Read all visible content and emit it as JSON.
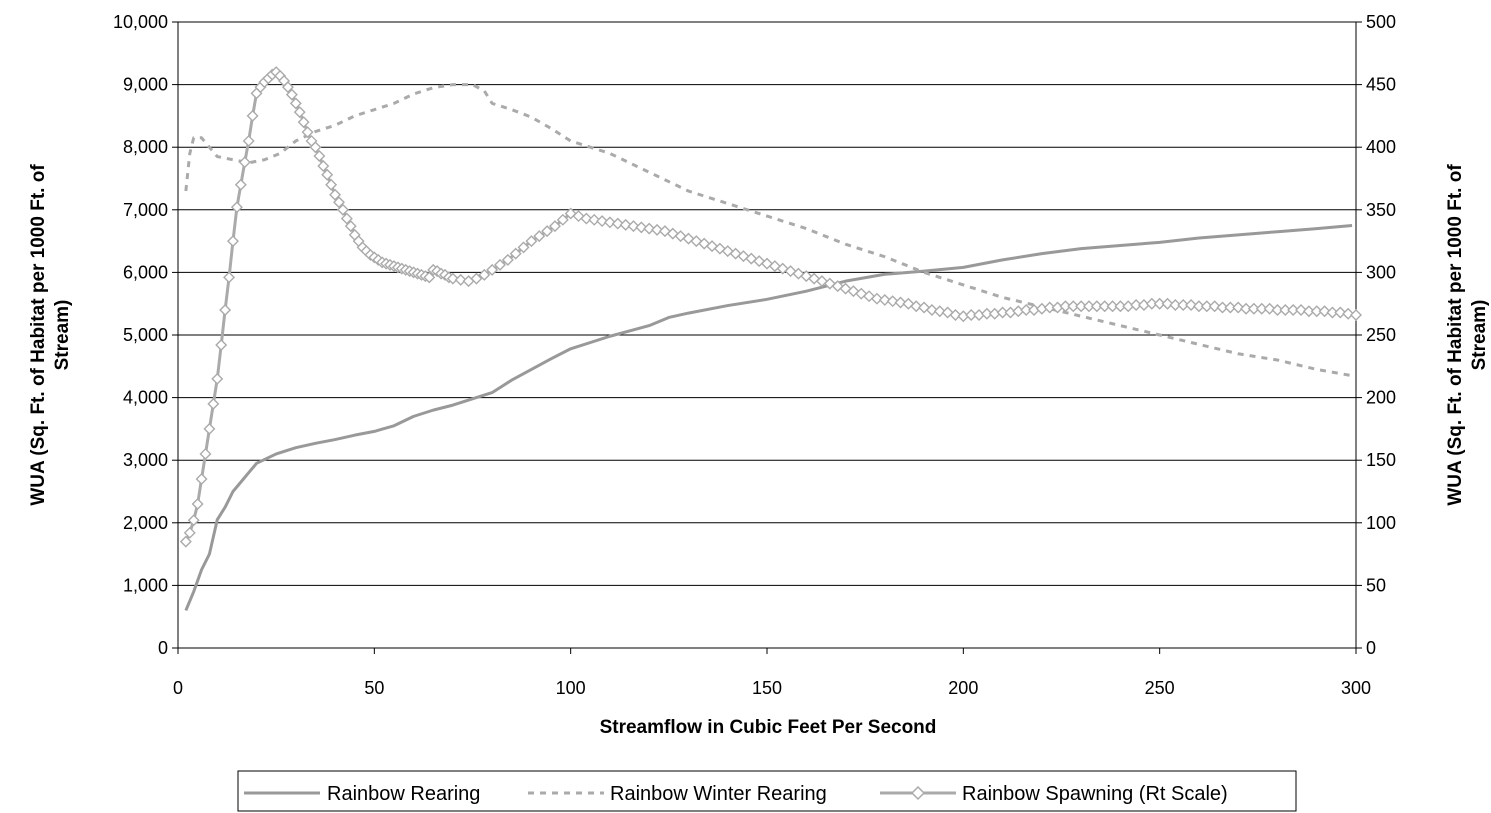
{
  "chart_data": {
    "type": "line",
    "title": "",
    "xlabel": "Streamflow in Cubic Feet Per Second",
    "ylabel_left": [
      "WUA (Sq. Ft. of Habitat per 1000 Ft. of",
      "Stream)"
    ],
    "ylabel_right": [
      "WUA (Sq. Ft. of Habitat per 1000 Ft. of",
      "Stream)"
    ],
    "xlim": [
      0,
      300
    ],
    "ylim_left": [
      0,
      10000
    ],
    "ylim_right": [
      0,
      500
    ],
    "x_ticks": [
      "0",
      "50",
      "100",
      "150",
      "200",
      "250",
      "300"
    ],
    "y_ticks_left": [
      "0",
      "1,000",
      "2,000",
      "3,000",
      "4,000",
      "5,000",
      "6,000",
      "7,000",
      "8,000",
      "9,000",
      "10,000"
    ],
    "y_ticks_right": [
      "0",
      "50",
      "100",
      "150",
      "200",
      "250",
      "300",
      "350",
      "400",
      "450",
      "500"
    ],
    "grid": "horizontal",
    "legend_position": "bottom",
    "series": [
      {
        "name": "Rainbow Rearing",
        "axis": "left",
        "style": "solid",
        "color": "#999999",
        "points": [
          [
            2,
            600
          ],
          [
            4,
            900
          ],
          [
            6,
            1250
          ],
          [
            8,
            1500
          ],
          [
            10,
            2050
          ],
          [
            12,
            2250
          ],
          [
            14,
            2500
          ],
          [
            16,
            2650
          ],
          [
            18,
            2800
          ],
          [
            20,
            2950
          ],
          [
            25,
            3100
          ],
          [
            30,
            3200
          ],
          [
            35,
            3270
          ],
          [
            40,
            3330
          ],
          [
            45,
            3400
          ],
          [
            50,
            3460
          ],
          [
            55,
            3550
          ],
          [
            60,
            3700
          ],
          [
            65,
            3800
          ],
          [
            70,
            3880
          ],
          [
            75,
            3980
          ],
          [
            80,
            4080
          ],
          [
            85,
            4280
          ],
          [
            90,
            4450
          ],
          [
            95,
            4620
          ],
          [
            100,
            4780
          ],
          [
            110,
            4980
          ],
          [
            120,
            5150
          ],
          [
            125,
            5280
          ],
          [
            130,
            5350
          ],
          [
            140,
            5470
          ],
          [
            150,
            5570
          ],
          [
            160,
            5700
          ],
          [
            170,
            5860
          ],
          [
            180,
            5970
          ],
          [
            190,
            6020
          ],
          [
            200,
            6080
          ],
          [
            210,
            6200
          ],
          [
            220,
            6300
          ],
          [
            230,
            6380
          ],
          [
            240,
            6430
          ],
          [
            250,
            6480
          ],
          [
            260,
            6550
          ],
          [
            270,
            6600
          ],
          [
            280,
            6650
          ],
          [
            290,
            6700
          ],
          [
            299,
            6750
          ]
        ]
      },
      {
        "name": "Rainbow Winter Rearing",
        "axis": "left",
        "style": "dashed",
        "color": "#aaaaaa",
        "points": [
          [
            2,
            7300
          ],
          [
            3,
            7900
          ],
          [
            4,
            8150
          ],
          [
            6,
            8150
          ],
          [
            8,
            8000
          ],
          [
            10,
            7850
          ],
          [
            14,
            7800
          ],
          [
            18,
            7750
          ],
          [
            22,
            7800
          ],
          [
            26,
            7900
          ],
          [
            30,
            8100
          ],
          [
            35,
            8250
          ],
          [
            40,
            8350
          ],
          [
            45,
            8500
          ],
          [
            50,
            8600
          ],
          [
            55,
            8700
          ],
          [
            60,
            8850
          ],
          [
            65,
            8950
          ],
          [
            70,
            9000
          ],
          [
            75,
            9000
          ],
          [
            78,
            8900
          ],
          [
            80,
            8700
          ],
          [
            85,
            8600
          ],
          [
            90,
            8480
          ],
          [
            95,
            8300
          ],
          [
            100,
            8100
          ],
          [
            110,
            7900
          ],
          [
            120,
            7600
          ],
          [
            130,
            7300
          ],
          [
            140,
            7100
          ],
          [
            150,
            6900
          ],
          [
            160,
            6700
          ],
          [
            170,
            6450
          ],
          [
            180,
            6250
          ],
          [
            190,
            6000
          ],
          [
            200,
            5800
          ],
          [
            210,
            5600
          ],
          [
            220,
            5450
          ],
          [
            230,
            5300
          ],
          [
            240,
            5150
          ],
          [
            250,
            5000
          ],
          [
            260,
            4850
          ],
          [
            270,
            4700
          ],
          [
            280,
            4600
          ],
          [
            290,
            4450
          ],
          [
            299,
            4350
          ]
        ]
      },
      {
        "name": "Rainbow Spawning (Rt Scale)",
        "axis": "right",
        "style": "solid-diamond",
        "color": "#aaaaaa",
        "points": [
          [
            2,
            85
          ],
          [
            3,
            92
          ],
          [
            4,
            102
          ],
          [
            5,
            115
          ],
          [
            6,
            135
          ],
          [
            7,
            155
          ],
          [
            8,
            175
          ],
          [
            9,
            195
          ],
          [
            10,
            215
          ],
          [
            11,
            242
          ],
          [
            12,
            270
          ],
          [
            13,
            296
          ],
          [
            14,
            325
          ],
          [
            15,
            352
          ],
          [
            16,
            370
          ],
          [
            17,
            388
          ],
          [
            18,
            405
          ],
          [
            19,
            425
          ],
          [
            20,
            443
          ],
          [
            21,
            448
          ],
          [
            22,
            452
          ],
          [
            23,
            455
          ],
          [
            24,
            458
          ],
          [
            25,
            460
          ],
          [
            26,
            457
          ],
          [
            27,
            453
          ],
          [
            28,
            448
          ],
          [
            29,
            442
          ],
          [
            30,
            435
          ],
          [
            31,
            428
          ],
          [
            32,
            420
          ],
          [
            33,
            412
          ],
          [
            34,
            405
          ],
          [
            35,
            400
          ],
          [
            36,
            393
          ],
          [
            37,
            385
          ],
          [
            38,
            378
          ],
          [
            39,
            370
          ],
          [
            40,
            362
          ],
          [
            41,
            356
          ],
          [
            42,
            350
          ],
          [
            43,
            343
          ],
          [
            44,
            337
          ],
          [
            45,
            330
          ],
          [
            46,
            325
          ],
          [
            47,
            320
          ],
          [
            48,
            317
          ],
          [
            49,
            314
          ],
          [
            50,
            312
          ],
          [
            51,
            310
          ],
          [
            52,
            308
          ],
          [
            53,
            307
          ],
          [
            54,
            306
          ],
          [
            55,
            305
          ],
          [
            56,
            304
          ],
          [
            57,
            303
          ],
          [
            58,
            302
          ],
          [
            59,
            301
          ],
          [
            60,
            300
          ],
          [
            61,
            299
          ],
          [
            62,
            298
          ],
          [
            63,
            297
          ],
          [
            64,
            296
          ],
          [
            65,
            302
          ],
          [
            66,
            301
          ],
          [
            67,
            299
          ],
          [
            68,
            298
          ],
          [
            69,
            296
          ],
          [
            70,
            295
          ],
          [
            72,
            294
          ],
          [
            74,
            293
          ],
          [
            76,
            295
          ],
          [
            78,
            298
          ],
          [
            80,
            302
          ],
          [
            82,
            306
          ],
          [
            84,
            310
          ],
          [
            86,
            315
          ],
          [
            88,
            320
          ],
          [
            90,
            325
          ],
          [
            92,
            329
          ],
          [
            94,
            333
          ],
          [
            96,
            337
          ],
          [
            98,
            342
          ],
          [
            100,
            347
          ],
          [
            102,
            345
          ],
          [
            104,
            343
          ],
          [
            106,
            342
          ],
          [
            108,
            341
          ],
          [
            110,
            340
          ],
          [
            112,
            339
          ],
          [
            114,
            338
          ],
          [
            116,
            337
          ],
          [
            118,
            336
          ],
          [
            120,
            335
          ],
          [
            122,
            334
          ],
          [
            124,
            333
          ],
          [
            126,
            331
          ],
          [
            128,
            329
          ],
          [
            130,
            327
          ],
          [
            132,
            325
          ],
          [
            134,
            323
          ],
          [
            136,
            321
          ],
          [
            138,
            319
          ],
          [
            140,
            317
          ],
          [
            142,
            315
          ],
          [
            144,
            313
          ],
          [
            146,
            311
          ],
          [
            148,
            309
          ],
          [
            150,
            307
          ],
          [
            152,
            305
          ],
          [
            154,
            303
          ],
          [
            156,
            301
          ],
          [
            158,
            299
          ],
          [
            160,
            297
          ],
          [
            162,
            295
          ],
          [
            164,
            293
          ],
          [
            166,
            291
          ],
          [
            168,
            289
          ],
          [
            170,
            287
          ],
          [
            172,
            285
          ],
          [
            174,
            283
          ],
          [
            176,
            281
          ],
          [
            178,
            279
          ],
          [
            180,
            278
          ],
          [
            182,
            277
          ],
          [
            184,
            276
          ],
          [
            186,
            275
          ],
          [
            188,
            273
          ],
          [
            190,
            272
          ],
          [
            192,
            270
          ],
          [
            194,
            269
          ],
          [
            196,
            268
          ],
          [
            198,
            266
          ],
          [
            200,
            265
          ],
          [
            202,
            266
          ],
          [
            204,
            266
          ],
          [
            206,
            267
          ],
          [
            208,
            267
          ],
          [
            210,
            268
          ],
          [
            212,
            268
          ],
          [
            214,
            269
          ],
          [
            216,
            270
          ],
          [
            218,
            270
          ],
          [
            220,
            271
          ],
          [
            222,
            272
          ],
          [
            224,
            272
          ],
          [
            226,
            273
          ],
          [
            228,
            273
          ],
          [
            230,
            273
          ],
          [
            232,
            273
          ],
          [
            234,
            273
          ],
          [
            236,
            273
          ],
          [
            238,
            273
          ],
          [
            240,
            273
          ],
          [
            242,
            273
          ],
          [
            244,
            274
          ],
          [
            246,
            274
          ],
          [
            248,
            275
          ],
          [
            250,
            275
          ],
          [
            252,
            275
          ],
          [
            254,
            274
          ],
          [
            256,
            274
          ],
          [
            258,
            274
          ],
          [
            260,
            273
          ],
          [
            262,
            273
          ],
          [
            264,
            273
          ],
          [
            266,
            272
          ],
          [
            268,
            272
          ],
          [
            270,
            272
          ],
          [
            272,
            271
          ],
          [
            274,
            271
          ],
          [
            276,
            271
          ],
          [
            278,
            271
          ],
          [
            280,
            270
          ],
          [
            282,
            270
          ],
          [
            284,
            270
          ],
          [
            286,
            270
          ],
          [
            288,
            269
          ],
          [
            290,
            269
          ],
          [
            292,
            269
          ],
          [
            294,
            268
          ],
          [
            296,
            268
          ],
          [
            298,
            267
          ],
          [
            300,
            266
          ]
        ]
      }
    ]
  }
}
